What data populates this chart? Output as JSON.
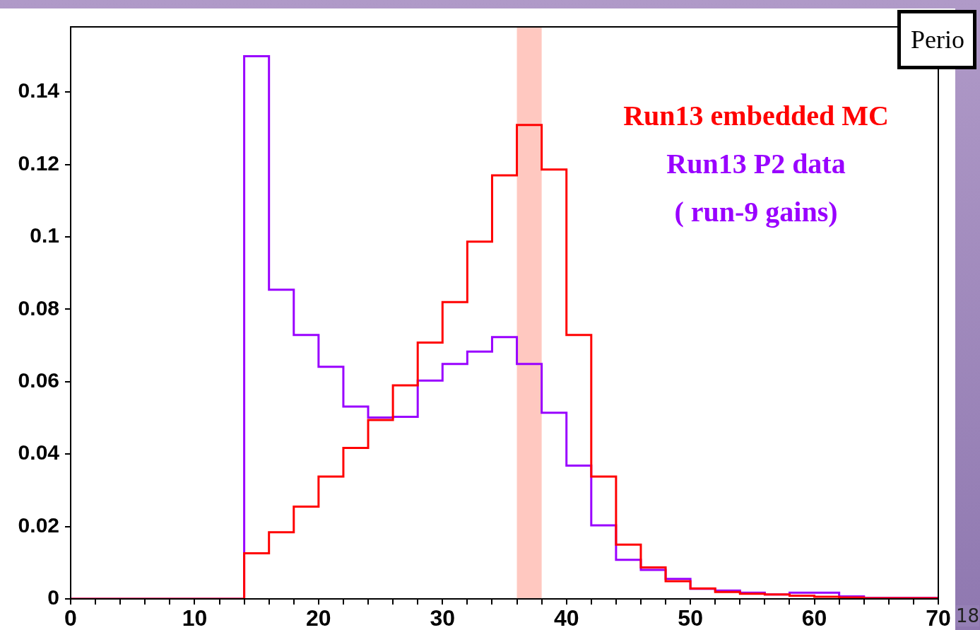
{
  "chart_data": {
    "type": "histogram",
    "bins": [
      0,
      2,
      4,
      6,
      8,
      10,
      12,
      14,
      16,
      18,
      20,
      22,
      24,
      26,
      28,
      30,
      32,
      34,
      36,
      38,
      40,
      42,
      44,
      46,
      48,
      50,
      52,
      54,
      56,
      58,
      60,
      62,
      64,
      66,
      68,
      70
    ],
    "series": [
      {
        "name": "Run13 embedded MC",
        "color": "#ff0000",
        "values": [
          0,
          0,
          0,
          0,
          0,
          0,
          0,
          0.0126,
          0.0184,
          0.0255,
          0.0338,
          0.0417,
          0.0494,
          0.059,
          0.0708,
          0.082,
          0.0987,
          0.117,
          0.1309,
          0.1186,
          0.0729,
          0.0338,
          0.015,
          0.0087,
          0.0049,
          0.0029,
          0.0019,
          0.0014,
          0.0012,
          0.0009,
          0.0006,
          0.0004,
          0.0002,
          0.0002,
          0.0002
        ]
      },
      {
        "name": "Run13 P2 data",
        "color": "#9900ff",
        "values": [
          0,
          0,
          0,
          0,
          0,
          0,
          0,
          0.1499,
          0.0854,
          0.0729,
          0.0641,
          0.0531,
          0.0501,
          0.0503,
          0.0603,
          0.0649,
          0.0683,
          0.0723,
          0.0649,
          0.0514,
          0.0368,
          0.0203,
          0.0108,
          0.008,
          0.0055,
          0.0028,
          0.0023,
          0.0017,
          0.0012,
          0.0017,
          0.0017,
          0.0007,
          0.0003,
          0.0003,
          0.0003
        ]
      }
    ],
    "xlim": [
      0,
      70
    ],
    "xticks": [
      0,
      {
        "value": 2,
        "label": null
      },
      {
        "value": 4,
        "label": null
      },
      {
        "value": 6,
        "label": null
      },
      {
        "value": 8,
        "label": null
      },
      10,
      {
        "value": 12,
        "label": null
      },
      {
        "value": 14,
        "label": null
      },
      {
        "value": 16,
        "label": null
      },
      {
        "value": 18,
        "label": null
      },
      20,
      {
        "value": 22,
        "label": null
      },
      {
        "value": 24,
        "label": null
      },
      {
        "value": 26,
        "label": null
      },
      {
        "value": 28,
        "label": null
      },
      30,
      {
        "value": 32,
        "label": null
      },
      {
        "value": 34,
        "label": null
      },
      {
        "value": 36,
        "label": null
      },
      {
        "value": 38,
        "label": null
      },
      40,
      {
        "value": 42,
        "label": null
      },
      {
        "value": 44,
        "label": null
      },
      {
        "value": 46,
        "label": null
      },
      {
        "value": 48,
        "label": null
      },
      50,
      {
        "value": 52,
        "label": null
      },
      {
        "value": 54,
        "label": null
      },
      {
        "value": 56,
        "label": null
      },
      {
        "value": 58,
        "label": null
      },
      60,
      {
        "value": 62,
        "label": null
      },
      {
        "value": 64,
        "label": null
      },
      {
        "value": 66,
        "label": null
      },
      {
        "value": 68,
        "label": null
      },
      70
    ],
    "ylim": [
      0,
      0.158
    ],
    "yticks": [
      0,
      0.02,
      0.04,
      0.06,
      0.08,
      {
        "value": 0.1,
        "label": "0.1"
      },
      0.12,
      0.14
    ],
    "bands": [
      {
        "axis": "x",
        "from": 36,
        "to": 38,
        "color": "#ffc8c0"
      }
    ],
    "legend": "top right",
    "grid": false,
    "annotations": [
      "( run-9 gains)",
      "Perio",
      "18"
    ]
  }
}
